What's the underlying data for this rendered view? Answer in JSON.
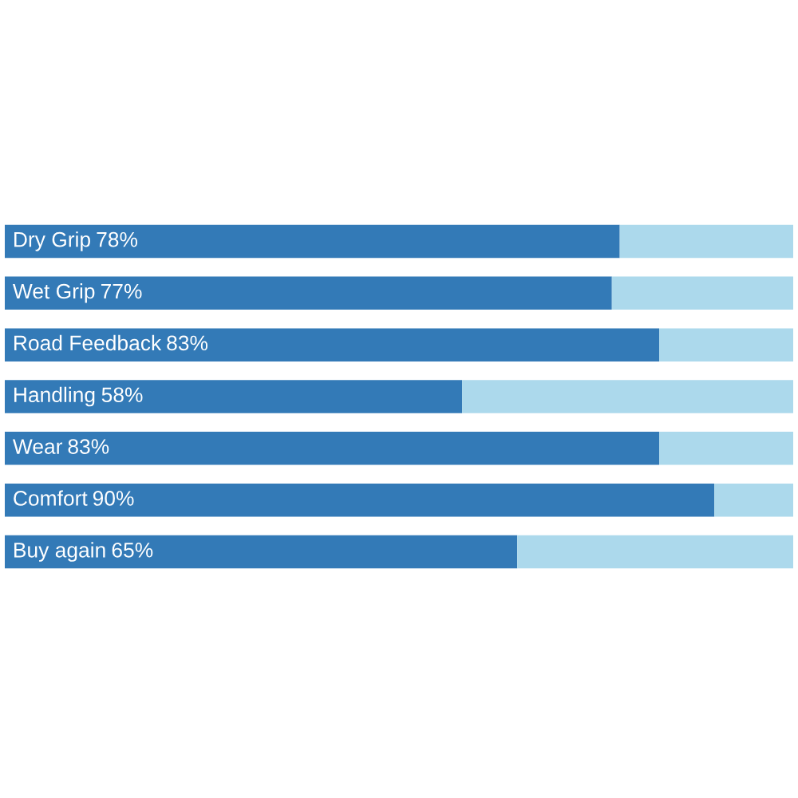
{
  "chart_data": {
    "type": "bar",
    "orientation": "horizontal",
    "stacked": true,
    "categories": [
      "Dry Grip",
      "Wet Grip",
      "Road Feedback",
      "Handling",
      "Wear",
      "Comfort",
      "Buy again"
    ],
    "series": [
      {
        "color": "#337ab7",
        "values": [
          78,
          77,
          83,
          58,
          83,
          90,
          65
        ],
        "value_labels": [
          "78%",
          "77%",
          "83%",
          "58%",
          "83%",
          "90%",
          "65%"
        ]
      },
      {
        "color": "#acd9ec",
        "values": [
          22,
          23,
          17,
          42,
          17,
          10,
          35
        ]
      }
    ]
  }
}
